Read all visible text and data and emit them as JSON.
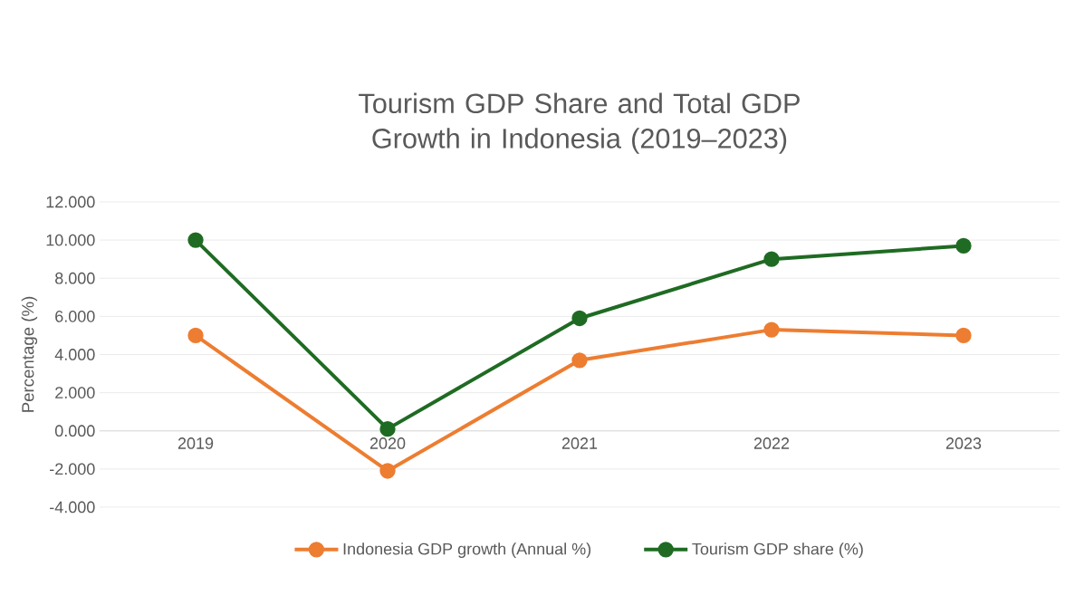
{
  "chart_data": {
    "type": "line",
    "title": "Tourism GDP Share and Total GDP Growth in Indonesia (2019–2023)",
    "ylabel": "Percentage (%)",
    "categories": [
      "2019",
      "2020",
      "2021",
      "2022",
      "2023"
    ],
    "series": [
      {
        "name": "Indonesia GDP growth (Annual %)",
        "color": "#ed7d31",
        "values": [
          5.0,
          -2.1,
          3.7,
          5.3,
          5.0
        ]
      },
      {
        "name": "Tourism GDP share (%)",
        "color": "#1f6b23",
        "values": [
          10.0,
          0.1,
          5.9,
          9.0,
          9.7
        ]
      }
    ],
    "ylim": [
      -4,
      12
    ],
    "yticks": [
      {
        "value": -4,
        "label": "-4.000"
      },
      {
        "value": -2,
        "label": "-2.000"
      },
      {
        "value": 0,
        "label": "0.000"
      },
      {
        "value": 2,
        "label": "2.000"
      },
      {
        "value": 4,
        "label": "4.000"
      },
      {
        "value": 6,
        "label": "6.000"
      },
      {
        "value": 8,
        "label": "8.000"
      },
      {
        "value": 10,
        "label": "10.000"
      },
      {
        "value": 12,
        "label": "12.000"
      }
    ],
    "grid": "y",
    "legend": "bottom",
    "marker": "circle",
    "line_style": "solid"
  }
}
